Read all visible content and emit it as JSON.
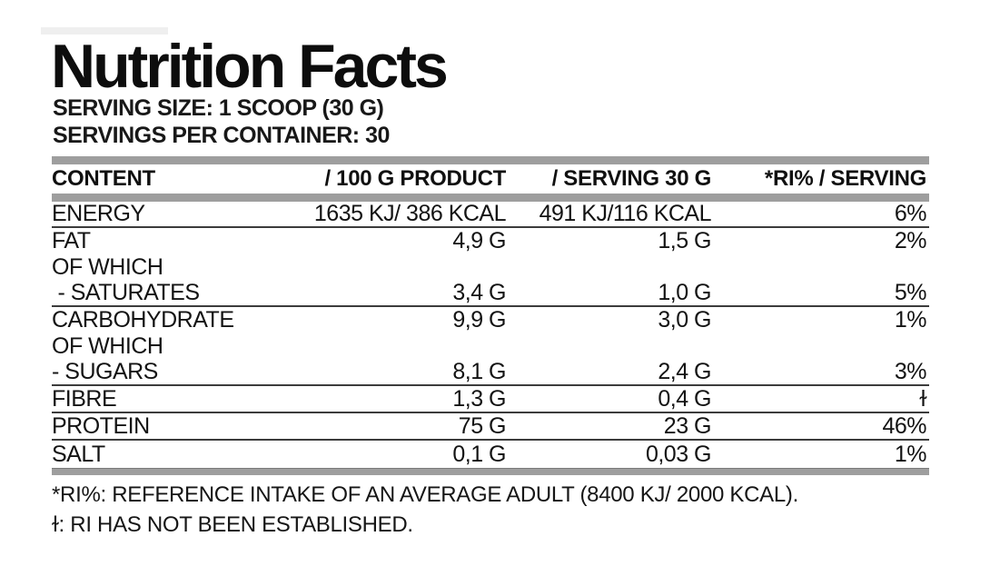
{
  "title": "Nutrition Facts",
  "serving_size": "SERVING SIZE: 1 SCOOP (30 G)",
  "servings_per_container": "SERVINGS PER CONTAINER: 30",
  "table": {
    "headers": [
      "CONTENT",
      "/ 100 G PRODUCT",
      "/ SERVING 30 G",
      "*RI% / SERVING"
    ],
    "rows": [
      {
        "label": "ENERGY",
        "per100": "1635 KJ/ 386 KCAL",
        "serving": "491 KJ/116 KCAL",
        "ri": "6%"
      },
      {
        "label": "FAT",
        "per100": "4,9 G",
        "serving": "1,5 G",
        "ri": "2%"
      },
      {
        "label": "OF WHICH",
        "per100": "",
        "serving": "",
        "ri": ""
      },
      {
        "label": " - SATURATES",
        "per100": "3,4 G",
        "serving": "1,0 G",
        "ri": "5%"
      },
      {
        "label": "CARBOHYDRATE",
        "per100": "9,9 G",
        "serving": "3,0 G",
        "ri": "1%"
      },
      {
        "label": "OF WHICH",
        "per100": "",
        "serving": "",
        "ri": ""
      },
      {
        "label": "- SUGARS",
        "per100": "8,1 G",
        "serving": "2,4 G",
        "ri": "3%"
      },
      {
        "label": "FIBRE",
        "per100": "1,3 G",
        "serving": "0,4 G",
        "ri": "ɫ"
      },
      {
        "label": "PROTEIN",
        "per100": "75 G",
        "serving": "23 G",
        "ri": "46%"
      },
      {
        "label": "SALT",
        "per100": "0,1 G",
        "serving": "0,03 G",
        "ri": "1%"
      }
    ]
  },
  "footnotes": [
    "*RI%: REFERENCE INTAKE OF AN AVERAGE ADULT (8400 KJ/ 2000 KCAL).",
    "ɫ: RI HAS NOT BEEN ESTABLISHED."
  ],
  "colors": {
    "text": "#131313",
    "bar_grey": "#9e9e9e",
    "separator_line": "#3c3c3c",
    "background": "#ffffff"
  }
}
